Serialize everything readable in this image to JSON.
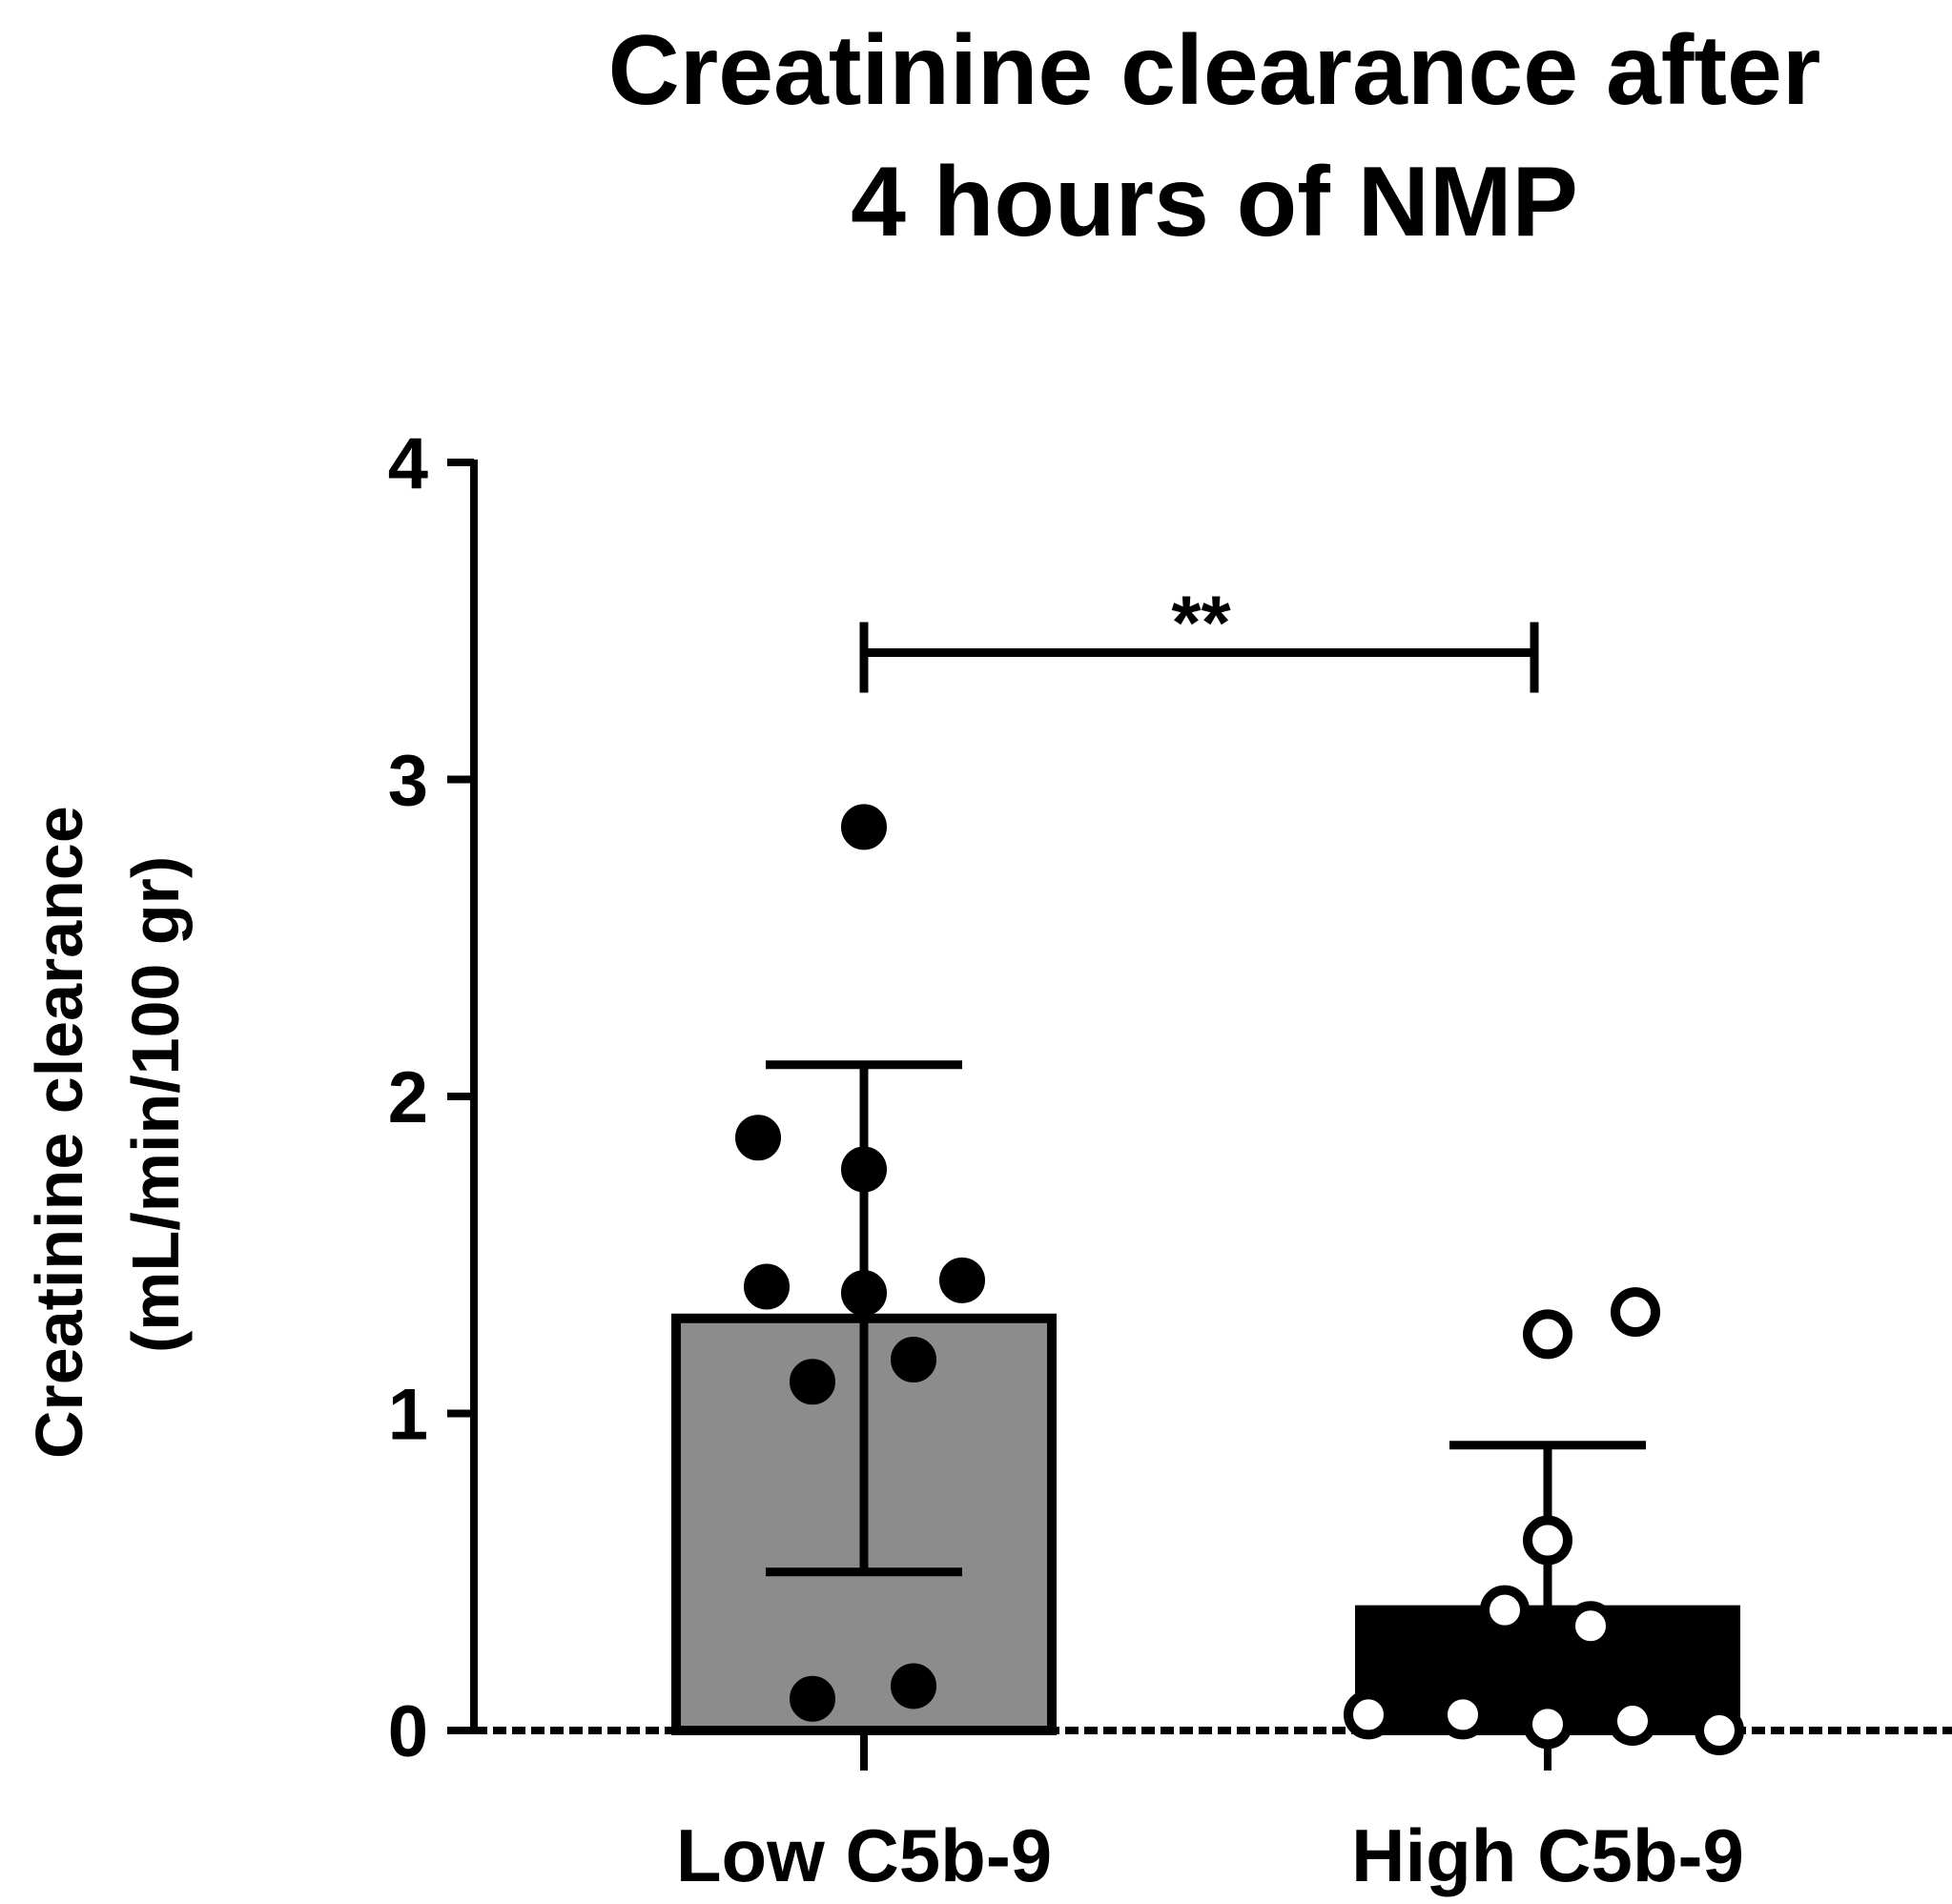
{
  "chart_data": {
    "type": "bar",
    "title_lines": [
      "Creatinine clearance after",
      "4 hours of NMP"
    ],
    "ylabel_lines": [
      "Creatinine clearance",
      "(mL/min/100 gr)"
    ],
    "xlabel": "",
    "ylim": [
      0,
      4
    ],
    "yticks": [
      "0",
      "1",
      "2",
      "3",
      "4"
    ],
    "categories": [
      "Low C5b-9",
      "High C5b-9"
    ],
    "values": [
      1.3,
      0.38
    ],
    "error_sd": [
      0.8,
      0.52
    ],
    "bar_colors": [
      "#8c8c8c",
      "#000000"
    ],
    "points": [
      [
        2.85,
        1.87,
        1.77,
        1.4,
        1.38,
        1.42,
        1.17,
        1.1,
        0.1,
        0.14
      ],
      [
        1.25,
        1.32,
        0.6,
        0.38,
        0.33,
        0.05,
        0.05,
        0.02,
        0.03,
        0.0
      ]
    ],
    "point_styles": [
      "filled",
      "open"
    ],
    "significance": {
      "label": "**",
      "between": [
        0,
        1
      ],
      "y": 3.4
    }
  }
}
